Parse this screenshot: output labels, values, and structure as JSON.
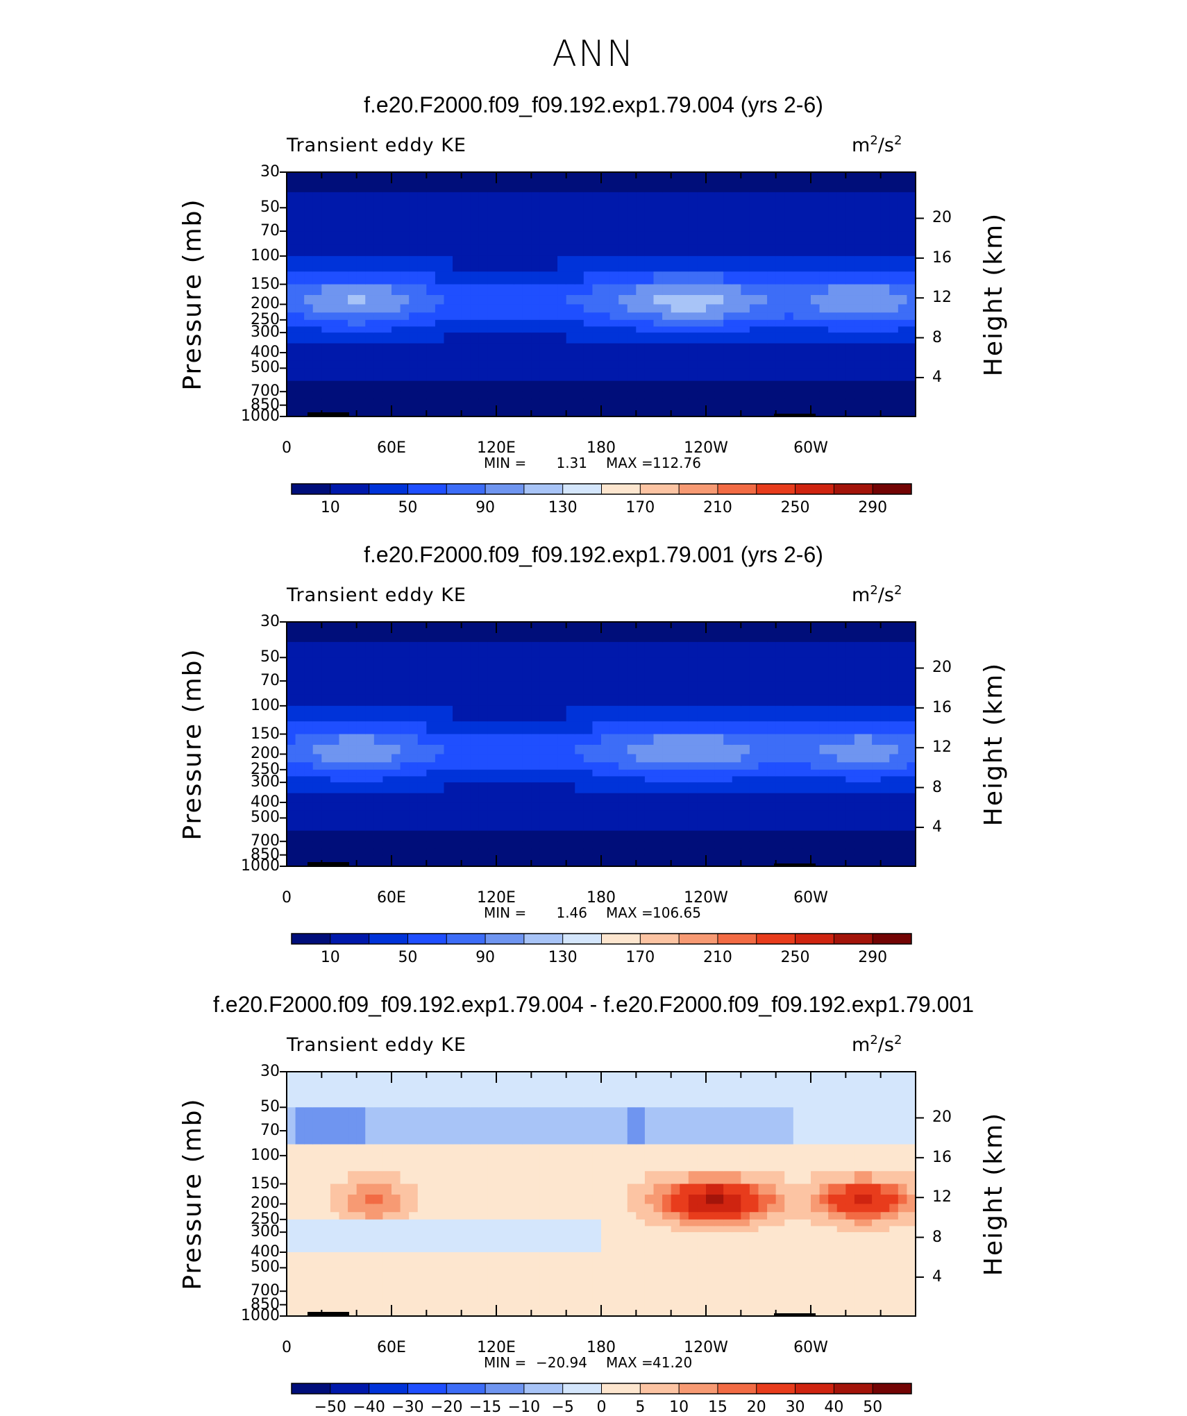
{
  "figure_title": "ANN",
  "colors": {
    "cb_main": [
      "#000e7a",
      "#0019ab",
      "#0033d9",
      "#1f4fff",
      "#3d6df7",
      "#6f95f0",
      "#a8c4f7",
      "#d4e6fc",
      "#fde6cf",
      "#fcc4a3",
      "#f79a73",
      "#f26b44",
      "#e83c1c",
      "#cf2410",
      "#a3140a",
      "#730404"
    ],
    "cb_diff": [
      "#000e7a",
      "#0019ab",
      "#0033d9",
      "#1f4fff",
      "#3d6df7",
      "#6f95f0",
      "#a8c4f7",
      "#d4e6fc",
      "#fde6cf",
      "#fcc4a3",
      "#f79a73",
      "#f26b44",
      "#e83c1c",
      "#cf2410",
      "#a3140a",
      "#730404"
    ]
  },
  "chart_data": [
    {
      "type": "heatmap",
      "panel_title": "f.e20.F2000.f09_f09.192.exp1.79.004 (yrs 2-6)",
      "variable": "Transient eddy KE",
      "units_base": "m",
      "units_exp1": "2",
      "units_mid": "/s",
      "units_exp2": "2",
      "ylabel": "Pressure (mb)",
      "ylabel_right": "Height (km)",
      "y_ticks": [
        "30",
        "50",
        "70",
        "100",
        "150",
        "200",
        "250",
        "300",
        "400",
        "500",
        "700",
        "850",
        "1000"
      ],
      "y_right_ticks": [
        "20",
        "16",
        "12",
        "8",
        "4"
      ],
      "x_ticks": [
        "0",
        "60E",
        "120E",
        "180",
        "120W",
        "60W"
      ],
      "min_label": "MIN =",
      "min_value": "1.31",
      "max_label": "MAX =",
      "max_value": "112.76",
      "colorbar_labels": [
        "10",
        "50",
        "90",
        "130",
        "170",
        "210",
        "250",
        "290"
      ],
      "colorbar_levels": [
        10,
        30,
        50,
        70,
        90,
        110,
        130,
        150,
        170,
        190,
        210,
        230,
        250,
        270,
        290
      ]
    },
    {
      "type": "heatmap",
      "panel_title": "f.e20.F2000.f09_f09.192.exp1.79.001 (yrs 2-6)",
      "variable": "Transient eddy KE",
      "units_base": "m",
      "units_exp1": "2",
      "units_mid": "/s",
      "units_exp2": "2",
      "ylabel": "Pressure (mb)",
      "ylabel_right": "Height (km)",
      "y_ticks": [
        "30",
        "50",
        "70",
        "100",
        "150",
        "200",
        "250",
        "300",
        "400",
        "500",
        "700",
        "850",
        "1000"
      ],
      "y_right_ticks": [
        "20",
        "16",
        "12",
        "8",
        "4"
      ],
      "x_ticks": [
        "0",
        "60E",
        "120E",
        "180",
        "120W",
        "60W"
      ],
      "min_label": "MIN =",
      "min_value": "1.46",
      "max_label": "MAX =",
      "max_value": "106.65",
      "colorbar_labels": [
        "10",
        "50",
        "90",
        "130",
        "170",
        "210",
        "250",
        "290"
      ],
      "colorbar_levels": [
        10,
        30,
        50,
        70,
        90,
        110,
        130,
        150,
        170,
        190,
        210,
        230,
        250,
        270,
        290
      ]
    },
    {
      "type": "heatmap",
      "panel_title": "f.e20.F2000.f09_f09.192.exp1.79.004 - f.e20.F2000.f09_f09.192.exp1.79.001",
      "variable": "Transient eddy KE",
      "units_base": "m",
      "units_exp1": "2",
      "units_mid": "/s",
      "units_exp2": "2",
      "ylabel": "Pressure (mb)",
      "ylabel_right": "Height (km)",
      "y_ticks": [
        "30",
        "50",
        "70",
        "100",
        "150",
        "200",
        "250",
        "300",
        "400",
        "500",
        "700",
        "850",
        "1000"
      ],
      "y_right_ticks": [
        "20",
        "16",
        "12",
        "8",
        "4"
      ],
      "x_ticks": [
        "0",
        "60E",
        "120E",
        "180",
        "120W",
        "60W"
      ],
      "min_label": "MIN =",
      "min_value": "−20.94",
      "max_label": "MAX =",
      "max_value": "41.20",
      "colorbar_labels": [
        "−50",
        "−40",
        "−30",
        "−20",
        "−15",
        "−10",
        "−5",
        "0",
        "5",
        "10",
        "15",
        "20",
        "30",
        "40",
        "50"
      ],
      "colorbar_levels": [
        -50,
        -40,
        -30,
        -20,
        -15,
        -10,
        -5,
        0,
        5,
        10,
        15,
        20,
        30,
        40,
        50
      ]
    }
  ]
}
